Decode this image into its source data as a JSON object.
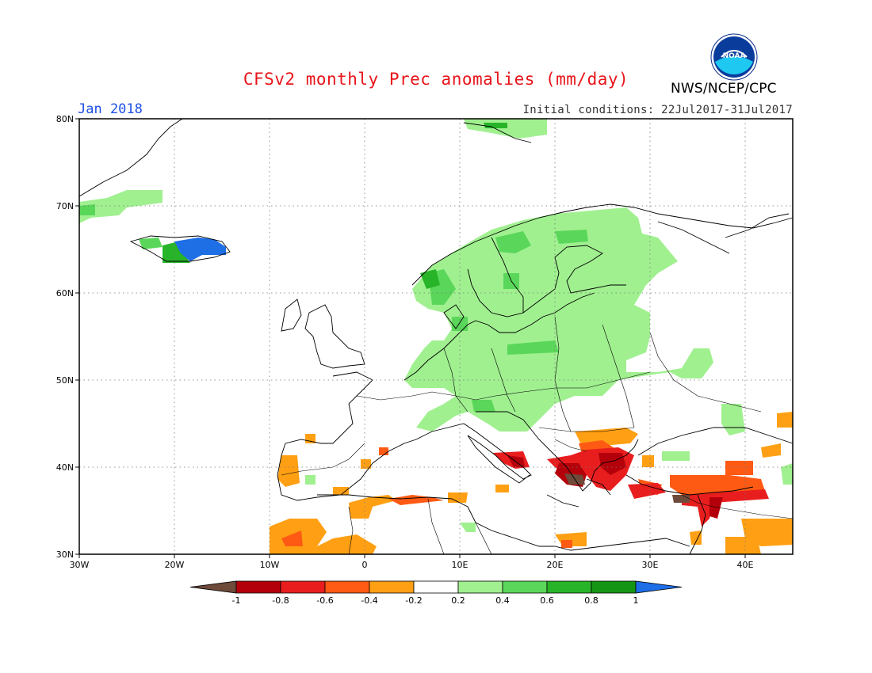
{
  "header": {
    "title": "CFSv2 monthly Prec anomalies (mm/day)",
    "valid_month": "Jan 2018",
    "initial_conditions": "Initial conditions: 22Jul2017-31Jul2017",
    "agency": "NWS/NCEP/CPC",
    "logo_text": "NOAA"
  },
  "map": {
    "region": "Europe",
    "lon_range": [
      -30,
      45
    ],
    "lat_range": [
      30,
      80
    ],
    "lat_ticks": [
      "30N",
      "40N",
      "50N",
      "60N",
      "70N",
      "80N"
    ],
    "lon_ticks": [
      "30W",
      "20W",
      "10W",
      "0",
      "10E",
      "20E",
      "30E",
      "40E"
    ],
    "gridlines": "dotted"
  },
  "legend": {
    "levels": [
      "-1",
      "-0.8",
      "-0.6",
      "-0.4",
      "-0.2",
      "0.2",
      "0.4",
      "0.6",
      "0.8",
      "1"
    ],
    "colors": [
      "#6e4a3a",
      "#b4000a",
      "#e81e1e",
      "#ff5a14",
      "#ffa014",
      "#ffffff",
      "#a0f090",
      "#5ad75a",
      "#28b428",
      "#149614",
      "#1e6ee6"
    ]
  }
}
